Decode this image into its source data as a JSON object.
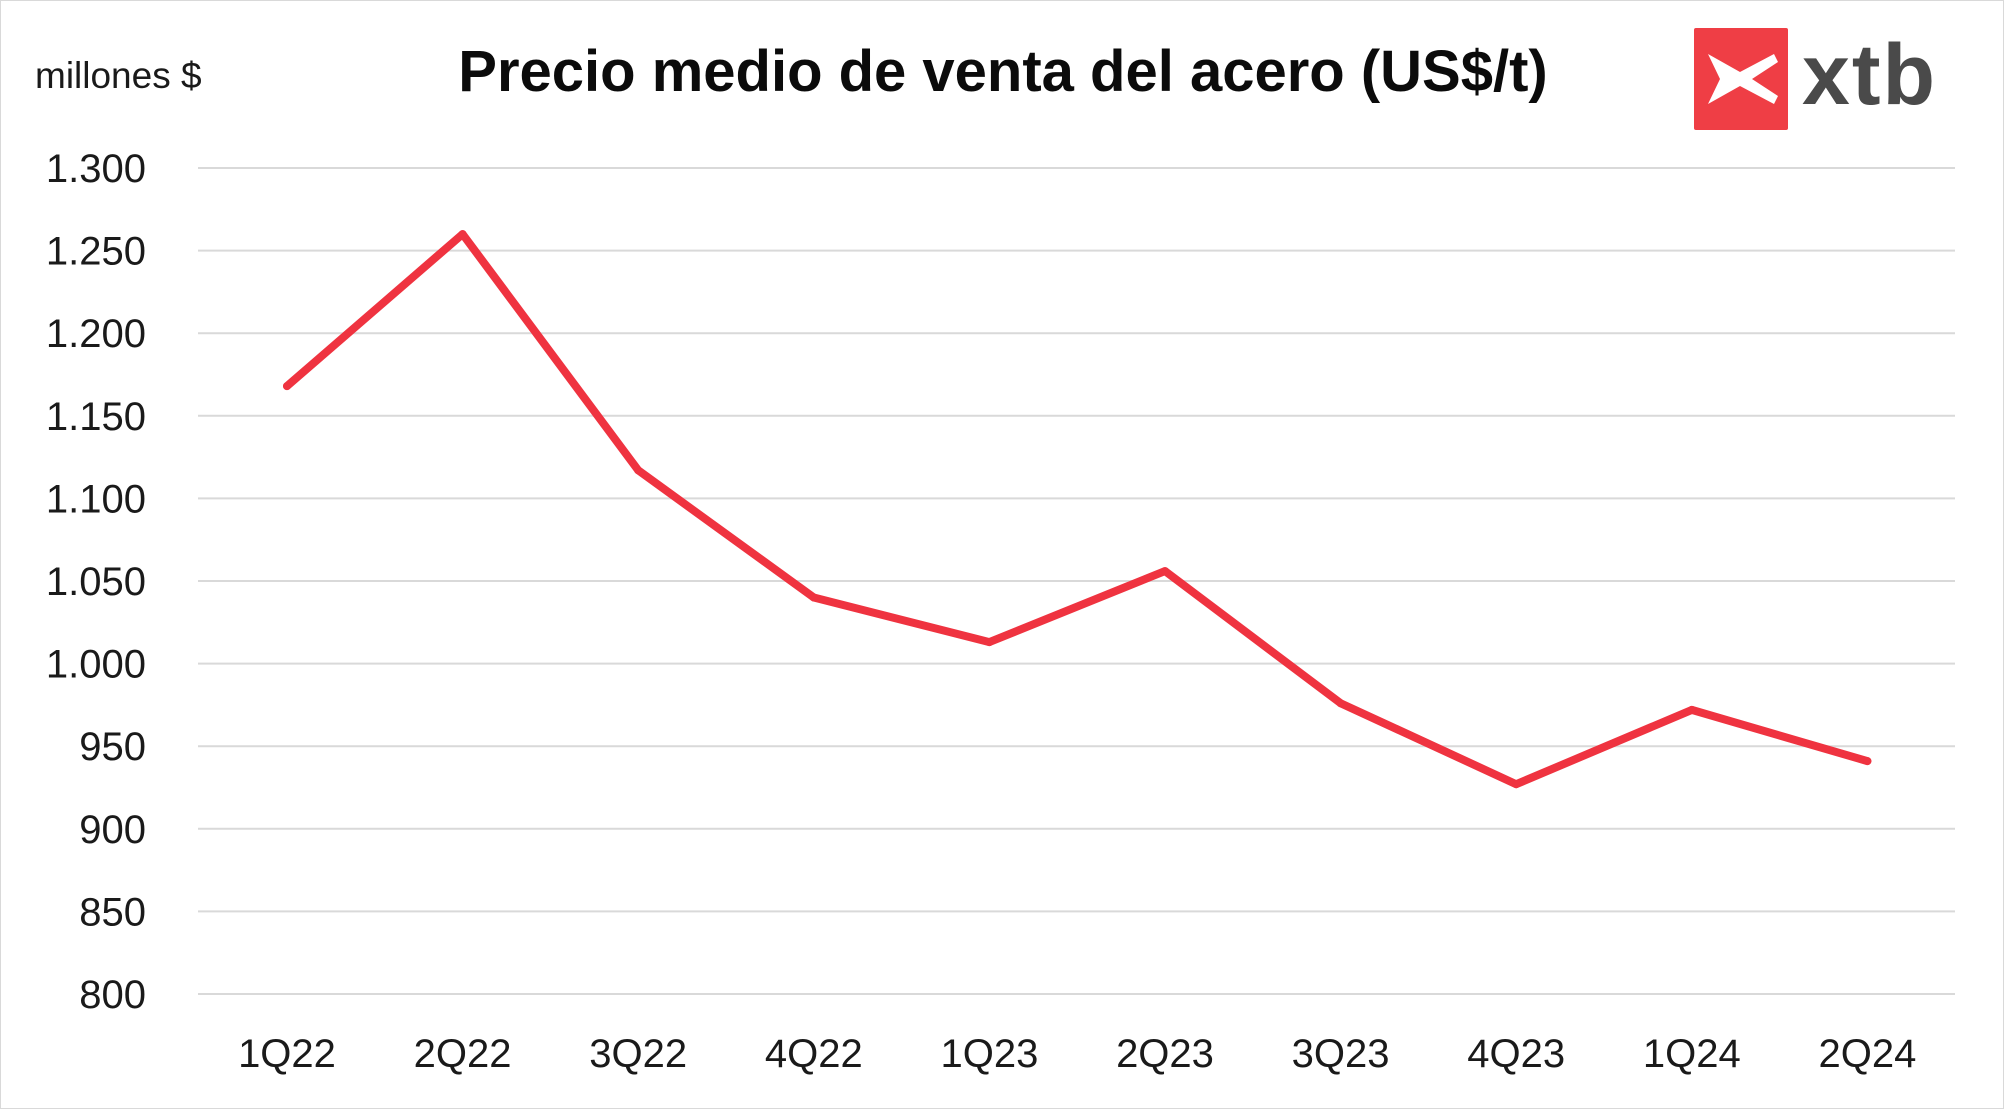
{
  "header": {
    "unit_label": "millones $",
    "logo_text": "xtb"
  },
  "colors": {
    "line": "#ef3340",
    "grid": "#d9d9d9",
    "logo_red": "#ef3e45",
    "logo_text": "#4a4a4a"
  },
  "chart_data": {
    "type": "line",
    "title": "Precio medio de venta del acero (US$/t)",
    "xlabel": "",
    "ylabel": "millones $",
    "categories": [
      "1Q22",
      "2Q22",
      "3Q22",
      "4Q22",
      "1Q23",
      "2Q23",
      "3Q23",
      "4Q23",
      "1Q24",
      "2Q24"
    ],
    "series": [
      {
        "values": [
          1168,
          1260,
          1117,
          1040,
          1013,
          1056,
          976,
          927,
          972,
          941
        ]
      }
    ],
    "ylim": [
      800,
      1300
    ],
    "yticks": [
      800,
      850,
      900,
      950,
      1000,
      1050,
      1100,
      1150,
      1200,
      1250,
      1300
    ],
    "ytick_labels": [
      "800",
      "850",
      "900",
      "950",
      "1.000",
      "1.050",
      "1.100",
      "1.150",
      "1.200",
      "1.250",
      "1.300"
    ],
    "grid": true,
    "legend": "none"
  }
}
